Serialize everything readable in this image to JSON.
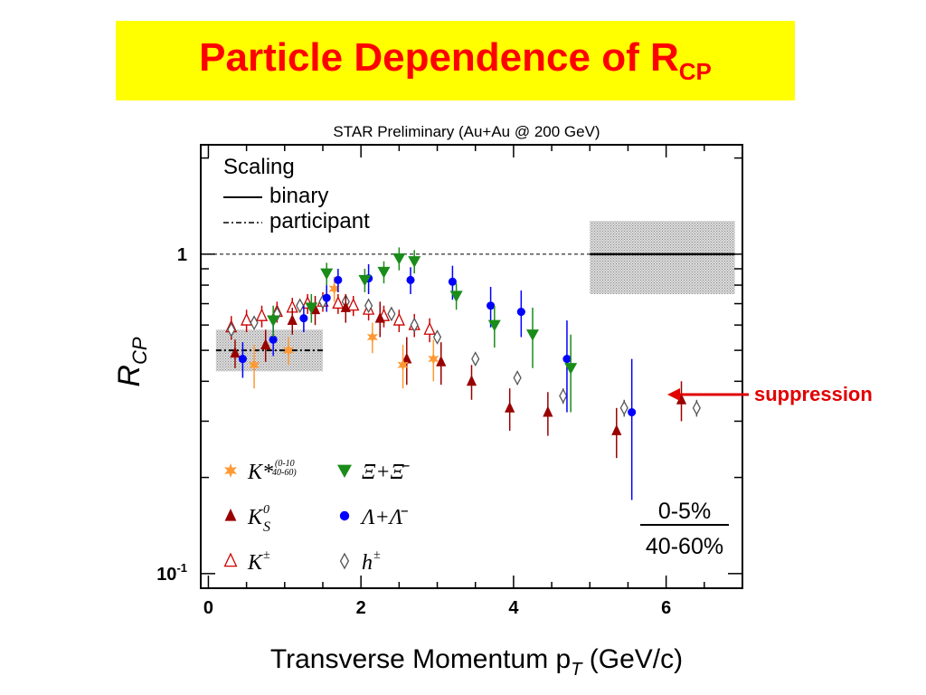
{
  "slide": {
    "title_main": "Particle Dependence of R",
    "title_sub": "CP",
    "annotation": "suppression"
  },
  "colors": {
    "banner": "#ffff00",
    "title": "#ff0000",
    "kstar": "#ff9933",
    "k0s": "#990000",
    "kpm": "#cc0000",
    "xi": "#1a8c1a",
    "lambda": "#0000ff",
    "h": "#555555",
    "arrow": "#e00000"
  },
  "chart_data": {
    "type": "scatter",
    "title": "STAR Preliminary (Au+Au @ 200 GeV)",
    "xlabel": "Transverse Momentum p",
    "xlabel_sub": "T",
    "xlabel_unit": " (GeV/c)",
    "ylabel": "R",
    "ylabel_sub": "CP",
    "xlim": [
      -0.1,
      7.0
    ],
    "ylim": [
      0.09,
      2.2
    ],
    "yscale": "log",
    "x_ticks": [
      0,
      2,
      4,
      6
    ],
    "y_tick_labels": [
      {
        "value": 1,
        "label": "1"
      },
      {
        "value": 0.1,
        "label": "10",
        "sup": "-1"
      }
    ],
    "legend_scaling": {
      "heading": "Scaling",
      "binary": "binary",
      "participant": "participant"
    },
    "centrality_num": "0-5%",
    "centrality_den": "40-60%",
    "binary_band": {
      "x": [
        5.0,
        6.9
      ],
      "y": 1.0,
      "y_low": 0.75,
      "y_high": 1.27
    },
    "participant_band": {
      "x": [
        0.1,
        1.5
      ],
      "y": 0.5,
      "y_low": 0.43,
      "y_high": 0.58
    },
    "series": [
      {
        "key": "xi",
        "name": "Ξ+Ξ̄",
        "marker": "triangle-down",
        "x": [
          0.85,
          1.35,
          1.55,
          2.05,
          2.3,
          2.5,
          2.7,
          3.25,
          3.75,
          4.25,
          4.75
        ],
        "y": [
          0.62,
          0.68,
          0.87,
          0.83,
          0.88,
          0.97,
          0.95,
          0.74,
          0.6,
          0.56,
          0.44
        ],
        "err": [
          0.07,
          0.07,
          0.07,
          0.07,
          0.07,
          0.08,
          0.08,
          0.07,
          0.09,
          0.12,
          0.12
        ]
      },
      {
        "key": "lambda",
        "name": "Λ+Λ̄",
        "marker": "circle",
        "x": [
          0.45,
          0.85,
          1.25,
          1.55,
          1.7,
          2.1,
          2.65,
          3.2,
          3.7,
          4.1,
          4.7,
          5.55
        ],
        "y": [
          0.47,
          0.54,
          0.63,
          0.73,
          0.83,
          0.84,
          0.83,
          0.82,
          0.69,
          0.66,
          0.47,
          0.32
        ],
        "err": [
          0.06,
          0.06,
          0.06,
          0.07,
          0.07,
          0.09,
          0.08,
          0.1,
          0.1,
          0.11,
          0.15,
          0.15
        ]
      },
      {
        "key": "kstar",
        "name": "K*",
        "marker": "star",
        "x": [
          0.6,
          1.05,
          1.65,
          2.15,
          2.55,
          2.95
        ],
        "y": [
          0.45,
          0.5,
          0.78,
          0.55,
          0.45,
          0.47
        ],
        "err": [
          0.07,
          0.05,
          0.07,
          0.06,
          0.07,
          0.07
        ]
      },
      {
        "key": "k0s",
        "name": "K",
        "marker": "triangle-up",
        "x": [
          0.35,
          0.75,
          1.1,
          1.4,
          1.8,
          2.25,
          2.6,
          3.05,
          3.45,
          3.95,
          4.45,
          5.35,
          6.2
        ],
        "y": [
          0.49,
          0.52,
          0.62,
          0.67,
          0.68,
          0.63,
          0.47,
          0.46,
          0.4,
          0.33,
          0.32,
          0.28,
          0.35
        ],
        "err": [
          0.05,
          0.06,
          0.06,
          0.07,
          0.07,
          0.08,
          0.08,
          0.07,
          0.05,
          0.05,
          0.05,
          0.05,
          0.05
        ]
      },
      {
        "key": "kpm",
        "name": "K",
        "marker": "triangle-up-open",
        "x": [
          0.3,
          0.5,
          0.7,
          0.9,
          1.1,
          1.3,
          1.5,
          1.7,
          1.9,
          2.1,
          2.3,
          2.5,
          2.7,
          2.9
        ],
        "y": [
          0.59,
          0.62,
          0.64,
          0.66,
          0.68,
          0.7,
          0.71,
          0.7,
          0.69,
          0.67,
          0.64,
          0.62,
          0.6,
          0.58
        ],
        "err": [
          0.05,
          0.05,
          0.05,
          0.05,
          0.05,
          0.05,
          0.05,
          0.05,
          0.05,
          0.05,
          0.05,
          0.05,
          0.05,
          0.05
        ]
      },
      {
        "key": "h",
        "name": "h",
        "marker": "diamond-open",
        "x": [
          0.3,
          0.6,
          0.9,
          1.2,
          1.5,
          1.8,
          2.1,
          2.4,
          2.7,
          3.0,
          3.5,
          4.05,
          4.65,
          5.45,
          6.4
        ],
        "y": [
          0.58,
          0.61,
          0.65,
          0.69,
          0.71,
          0.71,
          0.69,
          0.65,
          0.6,
          0.55,
          0.47,
          0.41,
          0.36,
          0.33,
          0.33
        ],
        "err": [
          0.02,
          0.02,
          0.02,
          0.02,
          0.02,
          0.02,
          0.02,
          0.02,
          0.02,
          0.02,
          0.02,
          0.02,
          0.02,
          0.02,
          0.02
        ]
      }
    ],
    "legend": [
      {
        "key": "kstar",
        "marker": "star",
        "text": "K*",
        "sup_num": "0-10",
        "sup_den": "40-60"
      },
      {
        "key": "xi",
        "marker": "triangle-down",
        "text": "Ξ+Ξ̄"
      },
      {
        "key": "k0s",
        "marker": "triangle-up",
        "text": "K",
        "sup": "0",
        "sub": "S"
      },
      {
        "key": "lambda",
        "marker": "circle",
        "text": "Λ+Λ̄"
      },
      {
        "key": "kpm",
        "marker": "triangle-up-open",
        "text": "K",
        "sup": "±"
      },
      {
        "key": "h",
        "marker": "diamond-open",
        "text": "h",
        "sup": "±"
      }
    ]
  }
}
